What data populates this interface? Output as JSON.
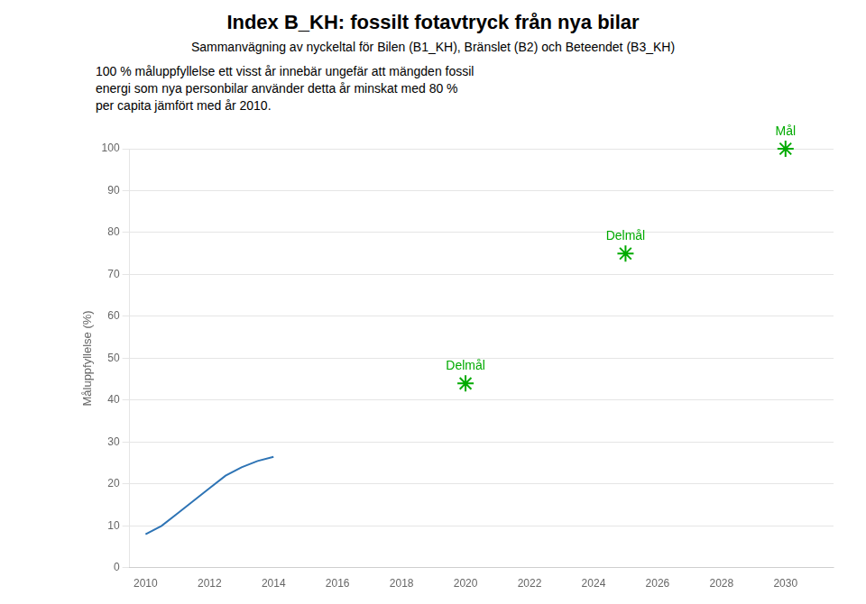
{
  "chart_data": {
    "type": "line",
    "title": "Index B_KH: fossilt fotavtryck från nya bilar",
    "subtitle": "Sammanvägning av nyckeltal för Bilen (B1_KH), Bränslet (B2) och Beteendet (B3_KH)",
    "description": [
      "100 % måluppfyllelse ett visst år innebär ungefär att mängden fossil",
      "energi som nya personbilar använder detta år minskat med 80 %",
      "per capita jämfört med år 2010."
    ],
    "ylabel": "Måluppfyllelse (%)",
    "xlim": [
      2009.5,
      2031.5
    ],
    "xticks": [
      2010,
      2012,
      2014,
      2016,
      2018,
      2020,
      2022,
      2024,
      2026,
      2028,
      2030
    ],
    "ylim": [
      0,
      100
    ],
    "yticks": [
      0,
      10,
      20,
      30,
      40,
      50,
      60,
      70,
      80,
      90,
      100
    ],
    "grid": "y",
    "series": [
      {
        "type": "line",
        "color": "#2E74B5",
        "x": [
          2010,
          2010.5,
          2011,
          2011.5,
          2012,
          2012.5,
          2013,
          2013.5,
          2014
        ],
        "values": [
          8,
          10,
          13,
          16,
          19,
          22,
          24,
          25.5,
          26.5
        ]
      },
      {
        "type": "scatter",
        "marker": "star",
        "color": "#00AA00",
        "x": [
          2020,
          2025,
          2030
        ],
        "values": [
          44,
          75,
          100
        ],
        "labels": [
          "Delmål",
          "Delmål",
          "Mål"
        ]
      }
    ]
  }
}
